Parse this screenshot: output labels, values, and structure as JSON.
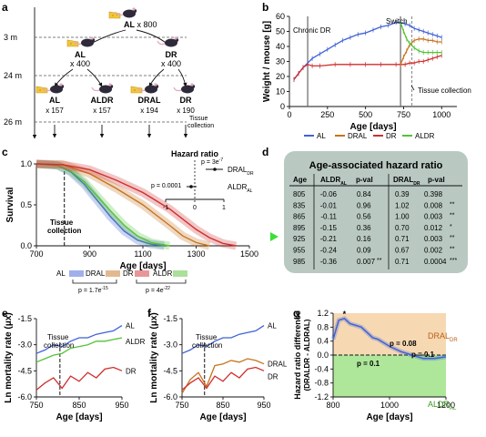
{
  "panels": {
    "a": {
      "label": "a",
      "time_labels": [
        "3 m",
        "24 m",
        "26 m"
      ],
      "root": {
        "diet": "AL",
        "count": "x 800"
      },
      "level2": [
        {
          "diet": "AL",
          "count": "x 400"
        },
        {
          "diet": "DR",
          "count": "x 400"
        }
      ],
      "level3": [
        {
          "diet": "AL",
          "count": "x 157"
        },
        {
          "diet": "ALDR",
          "count": "x 157"
        },
        {
          "diet": "DRAL",
          "count": "x 194"
        },
        {
          "diet": "DR",
          "count": "x 190"
        }
      ],
      "tissue_line1": "Tissue",
      "tissue_line2": "collection"
    },
    "b": {
      "label": "b",
      "annot_chronic": "Chronic DR",
      "annot_switch": "Switch",
      "annot_tissue": "Tissue collection",
      "legend": [
        "AL",
        "DRAL",
        "DR",
        "ALDR"
      ]
    },
    "c": {
      "label": "c",
      "annot_tissue1": "Tissue",
      "annot_tissue2": "collection",
      "legend_labels": [
        "AL",
        "DRAL",
        "DR",
        "ALDR"
      ],
      "pvals": [
        "p = 1.7e",
        "p = 4e"
      ],
      "pval_exps": [
        "-15",
        "-22"
      ],
      "hazard": {
        "title": "Hazard ratio",
        "p1": "p = 3e",
        "p1_exp": "-7",
        "p2": "p = 0.0001",
        "row1": "DRAL",
        "row1_sub": "DR",
        "row2": "ALDR",
        "row2_sub": "AL",
        "ticks": [
          "-1",
          "0",
          "1"
        ]
      }
    },
    "d": {
      "label": "d",
      "title": "Age-associated hazard ratio",
      "headers": {
        "age": "Age",
        "aldr": "ALDR",
        "aldr_sub": "AL",
        "pval1": "p-val",
        "dral": "DRAL",
        "dral_sub": "DR",
        "pval2": "p-val"
      },
      "rows": [
        {
          "age": "805",
          "aldr": "-0.06",
          "p1": "0.84",
          "p1s": "",
          "dral": "0.39",
          "p2": "0.398",
          "p2s": ""
        },
        {
          "age": "835",
          "aldr": "-0.01",
          "p1": "0.96",
          "p1s": "",
          "dral": "1.02",
          "p2": "0.008",
          "p2s": "**"
        },
        {
          "age": "865",
          "aldr": "-0.11",
          "p1": "0.56",
          "p1s": "",
          "dral": "1.00",
          "p2": "0.003",
          "p2s": "**"
        },
        {
          "age": "895",
          "aldr": "-0.15",
          "p1": "0.36",
          "p1s": "",
          "dral": "0.70",
          "p2": "0.012",
          "p2s": "*"
        },
        {
          "age": "925",
          "aldr": "-0.21",
          "p1": "0.16",
          "p1s": "",
          "dral": "0.71",
          "p2": "0.003",
          "p2s": "**"
        },
        {
          "age": "955",
          "aldr": "-0.24",
          "p1": "0.09",
          "p1s": "",
          "dral": "0.67",
          "p2": "0.002",
          "p2s": "**"
        },
        {
          "age": "985",
          "aldr": "-0.36",
          "p1": "0.007",
          "p1s": "**",
          "dral": "0.71",
          "p2": "0.0004",
          "p2s": "***"
        }
      ]
    },
    "e": {
      "label": "e",
      "annot1": "Tissue",
      "annot2": "collection",
      "series_labels": [
        "AL",
        "ALDR",
        "DR"
      ]
    },
    "f": {
      "label": "f",
      "annot1": "Tissue",
      "annot2": "collection",
      "series_labels": [
        "AL",
        "DRAL",
        "DR"
      ]
    },
    "g": {
      "label": "g",
      "p_a": "p = 0.08",
      "p_b": "p = 0.1",
      "p_c": "p = 0.1",
      "dral_label": "DRAL",
      "dral_sub": "DR",
      "aldr_label": "ALDR",
      "aldr_sub": "AL"
    }
  },
  "colors": {
    "AL": "#3f62d8",
    "DRAL": "#c6741f",
    "DR": "#cf2f2f",
    "ALDR": "#55c236",
    "orange_bg": "#f6d8b2",
    "green_bg": "#aee79a",
    "table_bg": "#b9c9c2",
    "arrow_green": "#39e03a"
  },
  "chart_data": [
    {
      "panel": "b",
      "type": "line",
      "xlabel": "Age [days]",
      "ylabel": "Weight / mouse [g]",
      "xlim": [
        0,
        1100
      ],
      "ylim": [
        0,
        60
      ],
      "xticks": [
        0,
        250,
        500,
        750,
        1000
      ],
      "yticks": [
        0,
        10,
        20,
        30,
        40,
        50,
        60
      ],
      "vlines": [
        120,
        730,
        805
      ],
      "series": [
        {
          "name": "AL",
          "x": [
            30,
            60,
            90,
            120,
            150,
            200,
            250,
            300,
            350,
            400,
            450,
            500,
            550,
            600,
            650,
            700,
            730,
            760,
            790,
            820,
            850,
            880,
            910,
            940,
            970,
            1000
          ],
          "y": [
            18,
            22,
            26,
            29,
            32,
            35,
            38,
            41,
            44,
            46,
            48,
            49,
            51,
            53,
            54,
            56,
            56,
            55,
            54,
            52,
            51,
            50,
            49,
            48,
            47,
            46
          ]
        },
        {
          "name": "DR",
          "x": [
            30,
            60,
            90,
            120,
            150,
            200,
            300,
            400,
            500,
            600,
            700,
            730,
            760,
            790,
            820,
            850,
            880,
            910,
            940,
            970,
            1000
          ],
          "y": [
            18,
            22,
            26,
            28,
            27,
            27,
            28,
            28,
            28,
            28,
            28,
            28,
            28,
            29,
            29,
            30,
            30,
            31,
            32,
            33,
            34
          ]
        },
        {
          "name": "DRAL",
          "x": [
            730,
            750,
            770,
            790,
            820,
            850,
            880,
            910,
            940,
            970,
            1000
          ],
          "y": [
            28,
            33,
            37,
            41,
            44,
            45,
            45,
            44,
            44,
            43,
            43
          ]
        },
        {
          "name": "ALDR",
          "x": [
            730,
            750,
            770,
            790,
            820,
            850,
            880,
            910,
            940,
            970,
            1000
          ],
          "y": [
            56,
            50,
            45,
            42,
            39,
            37,
            36,
            36,
            36,
            36,
            36
          ]
        }
      ]
    },
    {
      "panel": "c",
      "type": "line",
      "xlabel": "Age [days]",
      "ylabel": "Survival",
      "xlim": [
        700,
        1500
      ],
      "ylim": [
        0,
        1
      ],
      "xticks": [
        700,
        900,
        1100,
        1300,
        1500
      ],
      "yticks": [
        0,
        0.5,
        1.0
      ],
      "vline": 805,
      "series": [
        {
          "name": "AL",
          "x": [
            700,
            780,
            830,
            880,
            930,
            980,
            1030,
            1080,
            1130,
            1180
          ],
          "y": [
            1,
            0.98,
            0.9,
            0.75,
            0.55,
            0.35,
            0.18,
            0.07,
            0.02,
            0
          ]
        },
        {
          "name": "ALDR",
          "x": [
            700,
            780,
            830,
            880,
            930,
            980,
            1030,
            1080,
            1130,
            1200
          ],
          "y": [
            1,
            0.98,
            0.91,
            0.78,
            0.6,
            0.42,
            0.25,
            0.12,
            0.04,
            0
          ]
        },
        {
          "name": "DRAL",
          "x": [
            700,
            800,
            900,
            1000,
            1100,
            1200,
            1250,
            1300,
            1350
          ],
          "y": [
            1,
            0.99,
            0.88,
            0.7,
            0.5,
            0.25,
            0.12,
            0.04,
            0
          ]
        },
        {
          "name": "DR",
          "x": [
            700,
            800,
            900,
            1000,
            1100,
            1200,
            1300,
            1350,
            1400,
            1450
          ],
          "y": [
            1,
            0.99,
            0.93,
            0.8,
            0.65,
            0.45,
            0.2,
            0.1,
            0.03,
            0
          ]
        }
      ]
    },
    {
      "panel": "e",
      "type": "line",
      "xlabel": "Age [days]",
      "ylabel": "Ln mortality rate (μx)",
      "xlim": [
        750,
        950
      ],
      "ylim": [
        -6,
        -1.5
      ],
      "xticks": [
        750,
        850,
        950
      ],
      "yticks": [
        -1.5,
        -3.0,
        -4.5,
        -6.0
      ],
      "vline": 805,
      "series": [
        {
          "name": "AL",
          "x": [
            750,
            770,
            790,
            810,
            830,
            850,
            870,
            890,
            910,
            930,
            950
          ],
          "y": [
            -3.5,
            -3.3,
            -3.0,
            -3.1,
            -2.8,
            -2.6,
            -2.6,
            -2.4,
            -2.3,
            -2.2,
            -1.9
          ]
        },
        {
          "name": "ALDR",
          "x": [
            750,
            770,
            790,
            810,
            830,
            850,
            870,
            890,
            910,
            930,
            950
          ],
          "y": [
            -4.0,
            -3.8,
            -3.6,
            -3.5,
            -3.2,
            -3.1,
            -3.0,
            -2.8,
            -2.8,
            -2.7,
            -2.6
          ]
        },
        {
          "name": "DR",
          "x": [
            750,
            770,
            790,
            810,
            830,
            850,
            870,
            890,
            910,
            930,
            950
          ],
          "y": [
            -5.6,
            -5.2,
            -4.9,
            -5.5,
            -4.8,
            -5.1,
            -4.6,
            -4.9,
            -4.4,
            -4.3,
            -4.5
          ]
        }
      ]
    },
    {
      "panel": "f",
      "type": "line",
      "xlabel": "Age [days]",
      "ylabel": "Ln mortality rate (μx)",
      "xlim": [
        750,
        950
      ],
      "ylim": [
        -6,
        -1.5
      ],
      "xticks": [
        750,
        850,
        950
      ],
      "yticks": [
        -1.5,
        -3.0,
        -4.5,
        -6.0
      ],
      "vline": 805,
      "series": [
        {
          "name": "AL",
          "x": [
            750,
            770,
            790,
            810,
            830,
            850,
            870,
            890,
            910,
            930,
            950
          ],
          "y": [
            -3.5,
            -3.3,
            -3.0,
            -3.1,
            -2.8,
            -2.6,
            -2.6,
            -2.4,
            -2.3,
            -2.2,
            -1.9
          ]
        },
        {
          "name": "DRAL",
          "x": [
            750,
            770,
            790,
            810,
            830,
            850,
            870,
            890,
            910,
            930,
            950
          ],
          "y": [
            -5.8,
            -5.0,
            -4.6,
            -5.4,
            -4.2,
            -4.1,
            -3.9,
            -4.0,
            -3.8,
            -3.9,
            -4.1
          ]
        },
        {
          "name": "DR",
          "x": [
            750,
            770,
            790,
            810,
            830,
            850,
            870,
            890,
            910,
            930,
            950
          ],
          "y": [
            -5.6,
            -5.2,
            -4.9,
            -5.5,
            -4.8,
            -5.1,
            -4.6,
            -4.9,
            -4.4,
            -4.3,
            -4.5
          ]
        }
      ]
    },
    {
      "panel": "g",
      "type": "line",
      "xlabel": "Age [days]",
      "ylabel": "Hazard ratio difference (DRALDR - ALDRAL)",
      "xlim": [
        800,
        1200
      ],
      "ylim": [
        -1.2,
        1.2
      ],
      "xticks": [
        800,
        1000,
        1200
      ],
      "yticks": [
        -1.2,
        -0.8,
        -0.4,
        0.0,
        0.4,
        0.8,
        1.2
      ],
      "series": [
        {
          "name": "difference",
          "x": [
            800,
            820,
            840,
            860,
            880,
            900,
            920,
            940,
            960,
            980,
            1000,
            1040,
            1080,
            1120,
            1160,
            1200
          ],
          "y": [
            0.45,
            1.0,
            1.05,
            0.9,
            0.85,
            0.8,
            0.65,
            0.5,
            0.45,
            0.35,
            0.25,
            0.1,
            0.0,
            -0.1,
            -0.1,
            -0.05
          ]
        }
      ]
    }
  ]
}
